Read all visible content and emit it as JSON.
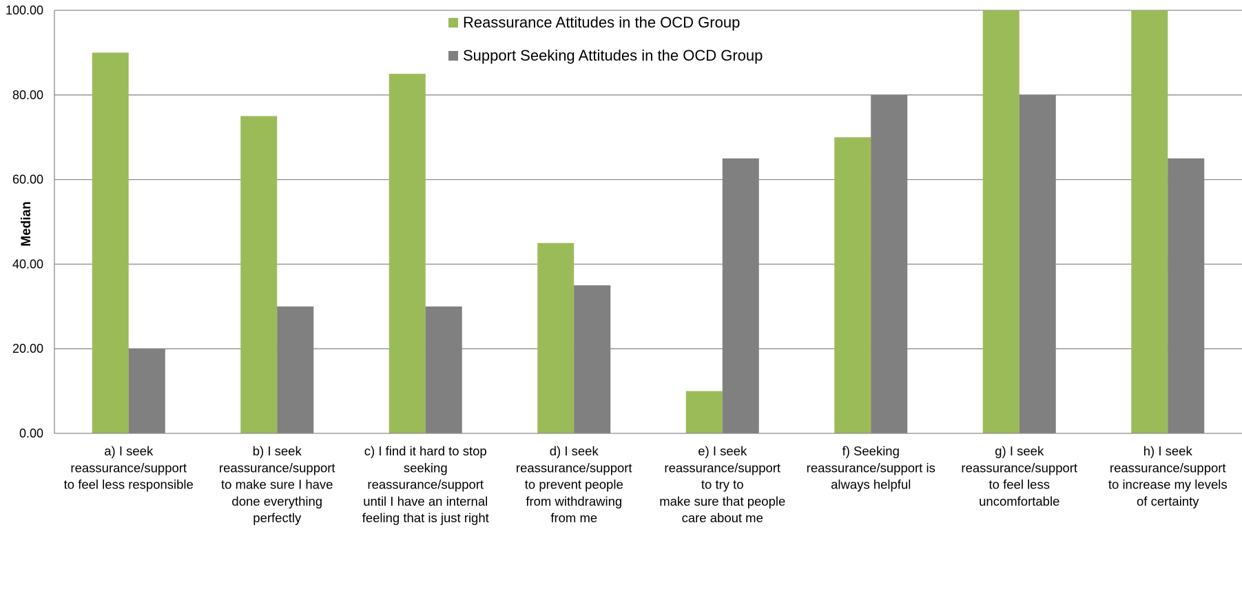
{
  "chart_data": {
    "type": "bar",
    "title": "",
    "xlabel": "",
    "ylabel": "Median",
    "ylim": [
      0,
      100
    ],
    "yticks": [
      "0.00",
      "20.00",
      "40.00",
      "60.00",
      "80.00",
      "100.00"
    ],
    "grid": true,
    "legend_position": "top-center",
    "categories": [
      [
        "a) I seek",
        "reassurance/support",
        "to feel less responsible"
      ],
      [
        "b) I seek",
        "reassurance/support",
        "to make sure I have",
        "done everything",
        "perfectly"
      ],
      [
        "c) I find it hard to stop",
        "seeking",
        "reassurance/support",
        "until I have an internal",
        "feeling that is just right"
      ],
      [
        "d) I seek",
        "reassurance/support",
        "to prevent people",
        "from withdrawing",
        "from me"
      ],
      [
        "e) I seek",
        "reassurance/support",
        "to try to",
        "make sure that people",
        "care about me"
      ],
      [
        "f) Seeking",
        "reassurance/support is",
        "always helpful"
      ],
      [
        "g) I seek",
        "reassurance/support",
        "to feel less",
        "uncomfortable"
      ],
      [
        "h) I seek",
        "reassurance/support",
        "to increase my levels",
        "of certainty"
      ]
    ],
    "series": [
      {
        "name": "Reassurance Attitudes in the OCD Group",
        "color": "#9bbb59",
        "values": [
          90,
          75,
          85,
          45,
          10,
          70,
          100,
          100
        ]
      },
      {
        "name": "Support Seeking Attitudes in the OCD Group",
        "color": "#808080",
        "values": [
          20,
          30,
          30,
          35,
          65,
          80,
          80,
          65
        ]
      }
    ]
  },
  "colors": {
    "gridline": "#8c8c8c",
    "axis": "#8c8c8c"
  }
}
